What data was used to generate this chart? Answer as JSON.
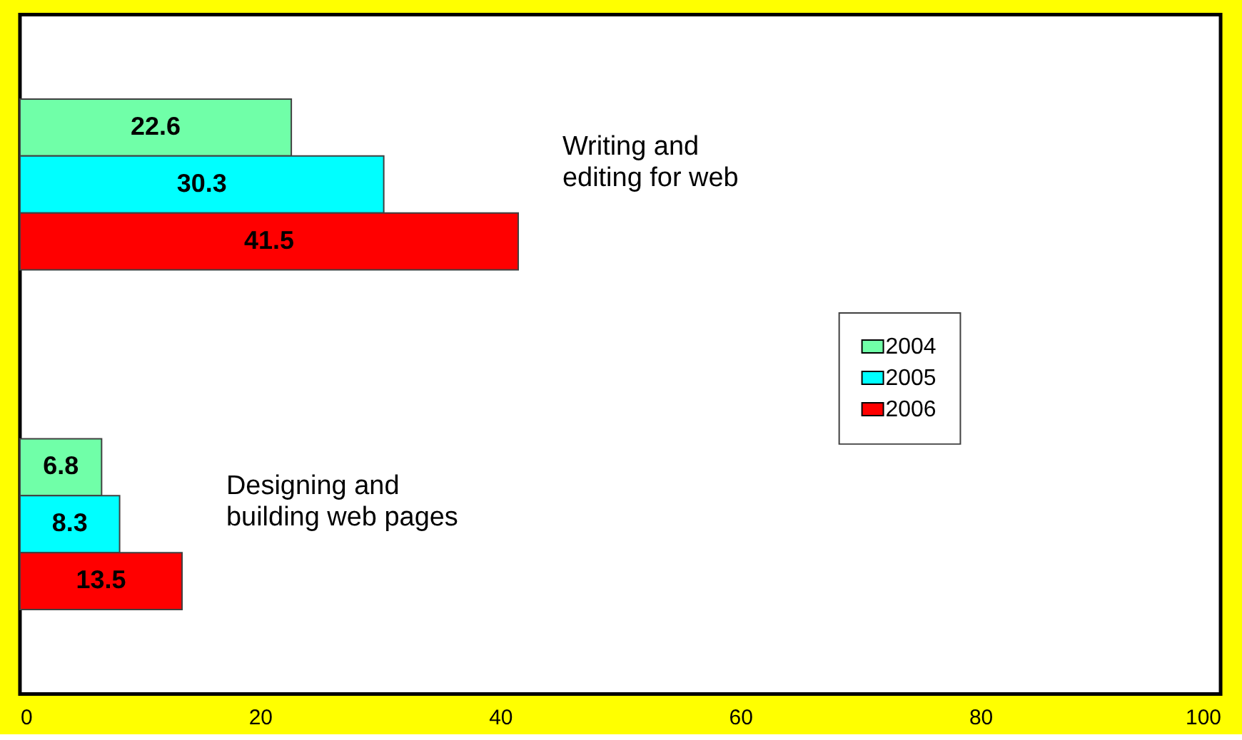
{
  "chart_data": {
    "type": "bar",
    "orientation": "horizontal",
    "categories": [
      "Writing and editing for web",
      "Designing and building web pages"
    ],
    "series": [
      {
        "name": "2004",
        "color": "#70ffa8",
        "values": [
          22.6,
          6.8
        ]
      },
      {
        "name": "2005",
        "color": "#00ffff",
        "values": [
          30.3,
          8.3
        ]
      },
      {
        "name": "2006",
        "color": "#ff0000",
        "values": [
          41.5,
          13.5
        ]
      }
    ],
    "xlim": [
      0,
      100
    ],
    "xticks": [
      0,
      20,
      40,
      60,
      80,
      100
    ],
    "data_labels": true,
    "legend": "right"
  }
}
